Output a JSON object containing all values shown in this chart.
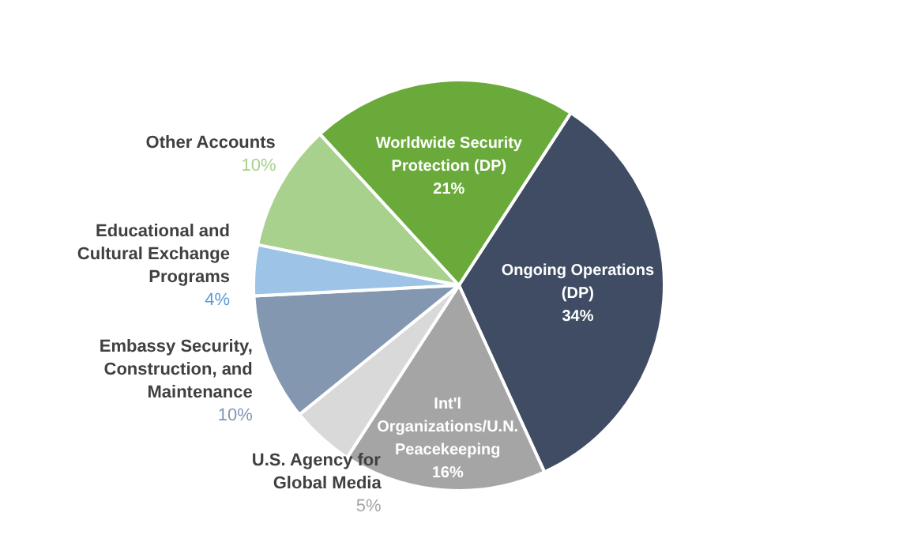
{
  "chart_data": {
    "type": "pie",
    "categories": [
      "Ongoing Operations (DP)",
      "Int'l Organizations/U.N. Peacekeeping",
      "U.S. Agency for Global Media",
      "Embassy Security, Construction, and Maintenance",
      "Educational and Cultural Exchange Programs",
      "Other Accounts",
      "Worldwide Security Protection (DP)"
    ],
    "values": [
      34,
      16,
      5,
      10,
      4,
      10,
      21
    ],
    "value_labels": [
      "34%",
      "16%",
      "5%",
      "10%",
      "4%",
      "10%",
      "21%"
    ],
    "colors": [
      "#3f4c63",
      "#a5a5a5",
      "#d9d9d9",
      "#8497b0",
      "#9dc3e6",
      "#a9d18e",
      "#6aaa3a"
    ]
  }
}
